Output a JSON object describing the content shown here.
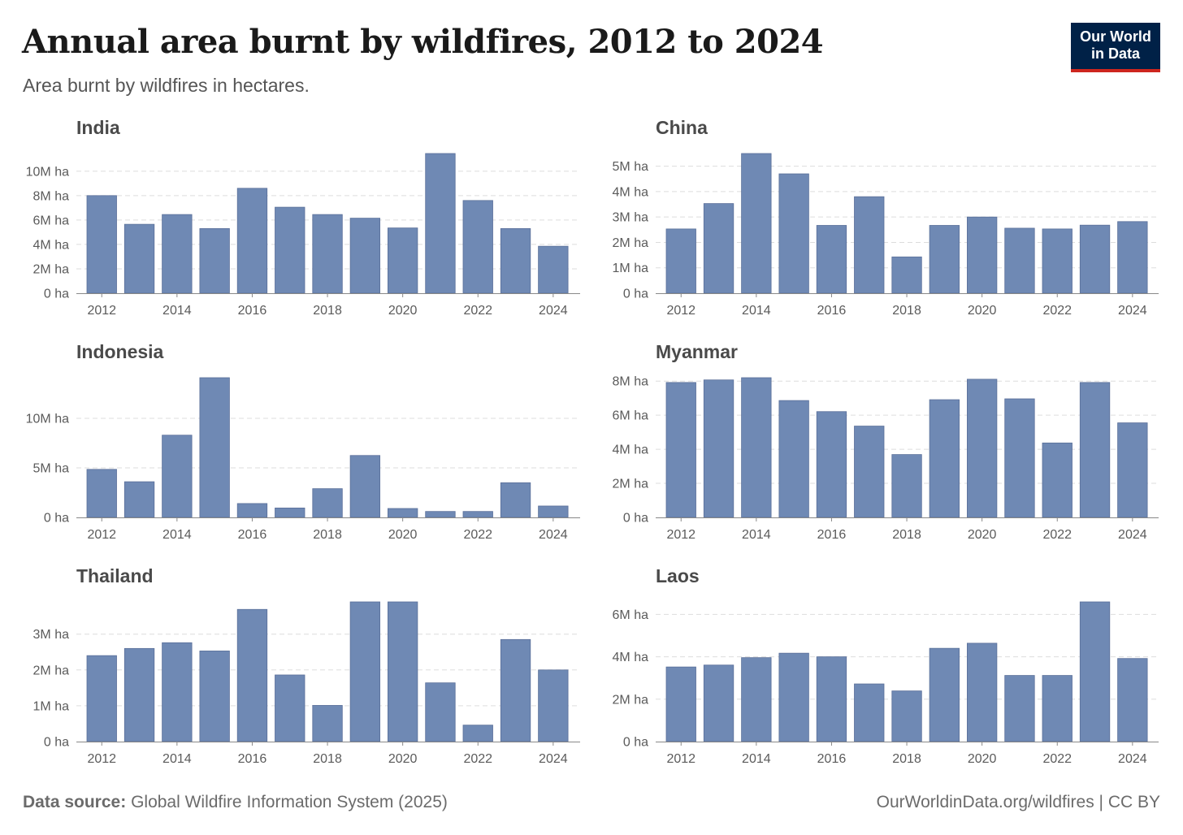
{
  "header": {
    "title": "Annual area burnt by wildfires, 2012 to 2024",
    "subtitle": "Area burnt by wildfires in hectares."
  },
  "logo": {
    "line1": "Our World",
    "line2": "in Data",
    "bg_color": "#002147",
    "accent_color": "#ce261e"
  },
  "footer": {
    "source_label": "Data source:",
    "source_text": "Global Wildfire Information System (2025)",
    "url_text": "OurWorldinData.org/wildfires | CC BY"
  },
  "colors": {
    "bar": "#6f89b4"
  },
  "chart_data": [
    {
      "type": "bar",
      "title": "India",
      "categories": [
        "2012",
        "2013",
        "2014",
        "2015",
        "2016",
        "2017",
        "2018",
        "2019",
        "2020",
        "2021",
        "2022",
        "2023",
        "2024"
      ],
      "values": [
        8000000,
        5650000,
        6450000,
        5300000,
        8600000,
        7050000,
        6450000,
        6150000,
        5350000,
        11450000,
        7600000,
        5300000,
        3850000
      ],
      "ylim": [
        0,
        11450000
      ],
      "yticks": [
        0,
        2000000,
        4000000,
        6000000,
        8000000,
        10000000
      ],
      "ytick_labels": [
        "0 ha",
        "2M ha",
        "4M ha",
        "6M ha",
        "8M ha",
        "10M ha"
      ],
      "xtick_labels": [
        "2012",
        "2014",
        "2016",
        "2018",
        "2020",
        "2022",
        "2024"
      ]
    },
    {
      "type": "bar",
      "title": "China",
      "categories": [
        "2012",
        "2013",
        "2014",
        "2015",
        "2016",
        "2017",
        "2018",
        "2019",
        "2020",
        "2021",
        "2022",
        "2023",
        "2024"
      ],
      "values": [
        2530000,
        3530000,
        5500000,
        4700000,
        2670000,
        3800000,
        1430000,
        2670000,
        3000000,
        2560000,
        2530000,
        2680000,
        2820000
      ],
      "ylim": [
        0,
        5500000
      ],
      "yticks": [
        0,
        1000000,
        2000000,
        3000000,
        4000000,
        5000000
      ],
      "ytick_labels": [
        "0 ha",
        "1M ha",
        "2M ha",
        "3M ha",
        "4M ha",
        "5M ha"
      ],
      "xtick_labels": [
        "2012",
        "2014",
        "2016",
        "2018",
        "2020",
        "2022",
        "2024"
      ]
    },
    {
      "type": "bar",
      "title": "Indonesia",
      "categories": [
        "2012",
        "2013",
        "2014",
        "2015",
        "2016",
        "2017",
        "2018",
        "2019",
        "2020",
        "2021",
        "2022",
        "2023",
        "2024"
      ],
      "values": [
        4850000,
        3600000,
        8300000,
        14100000,
        1400000,
        950000,
        2900000,
        6250000,
        900000,
        600000,
        600000,
        3500000,
        1150000
      ],
      "ylim": [
        0,
        14100000
      ],
      "yticks": [
        0,
        5000000,
        10000000
      ],
      "ytick_labels": [
        "0 ha",
        "5M ha",
        "10M ha"
      ],
      "xtick_labels": [
        "2012",
        "2014",
        "2016",
        "2018",
        "2020",
        "2022",
        "2024"
      ]
    },
    {
      "type": "bar",
      "title": "Myanmar",
      "categories": [
        "2012",
        "2013",
        "2014",
        "2015",
        "2016",
        "2017",
        "2018",
        "2019",
        "2020",
        "2021",
        "2022",
        "2023",
        "2024"
      ],
      "values": [
        7920000,
        8070000,
        8200000,
        6860000,
        6210000,
        5360000,
        3690000,
        6910000,
        8110000,
        6960000,
        4370000,
        7920000,
        5550000
      ],
      "ylim": [
        0,
        8200000
      ],
      "yticks": [
        0,
        2000000,
        4000000,
        6000000,
        8000000
      ],
      "ytick_labels": [
        "0 ha",
        "2M ha",
        "4M ha",
        "6M ha",
        "8M ha"
      ],
      "xtick_labels": [
        "2012",
        "2014",
        "2016",
        "2018",
        "2020",
        "2022",
        "2024"
      ]
    },
    {
      "type": "bar",
      "title": "Thailand",
      "categories": [
        "2012",
        "2013",
        "2014",
        "2015",
        "2016",
        "2017",
        "2018",
        "2019",
        "2020",
        "2021",
        "2022",
        "2023",
        "2024"
      ],
      "values": [
        2400000,
        2600000,
        2760000,
        2530000,
        3690000,
        1860000,
        1010000,
        3900000,
        3900000,
        1640000,
        460000,
        2850000,
        2000000
      ],
      "ylim": [
        0,
        3900000
      ],
      "yticks": [
        0,
        1000000,
        2000000,
        3000000
      ],
      "ytick_labels": [
        "0 ha",
        "1M ha",
        "2M ha",
        "3M ha"
      ],
      "xtick_labels": [
        "2012",
        "2014",
        "2016",
        "2018",
        "2020",
        "2022",
        "2024"
      ]
    },
    {
      "type": "bar",
      "title": "Laos",
      "categories": [
        "2012",
        "2013",
        "2014",
        "2015",
        "2016",
        "2017",
        "2018",
        "2019",
        "2020",
        "2021",
        "2022",
        "2023",
        "2024"
      ],
      "values": [
        3520000,
        3610000,
        3960000,
        4170000,
        4000000,
        2720000,
        2390000,
        4400000,
        4640000,
        3120000,
        3120000,
        6590000,
        3920000
      ],
      "ylim": [
        0,
        6590000
      ],
      "yticks": [
        0,
        2000000,
        4000000,
        6000000
      ],
      "ytick_labels": [
        "0 ha",
        "2M ha",
        "4M ha",
        "6M ha"
      ],
      "xtick_labels": [
        "2012",
        "2014",
        "2016",
        "2018",
        "2020",
        "2022",
        "2024"
      ]
    }
  ]
}
